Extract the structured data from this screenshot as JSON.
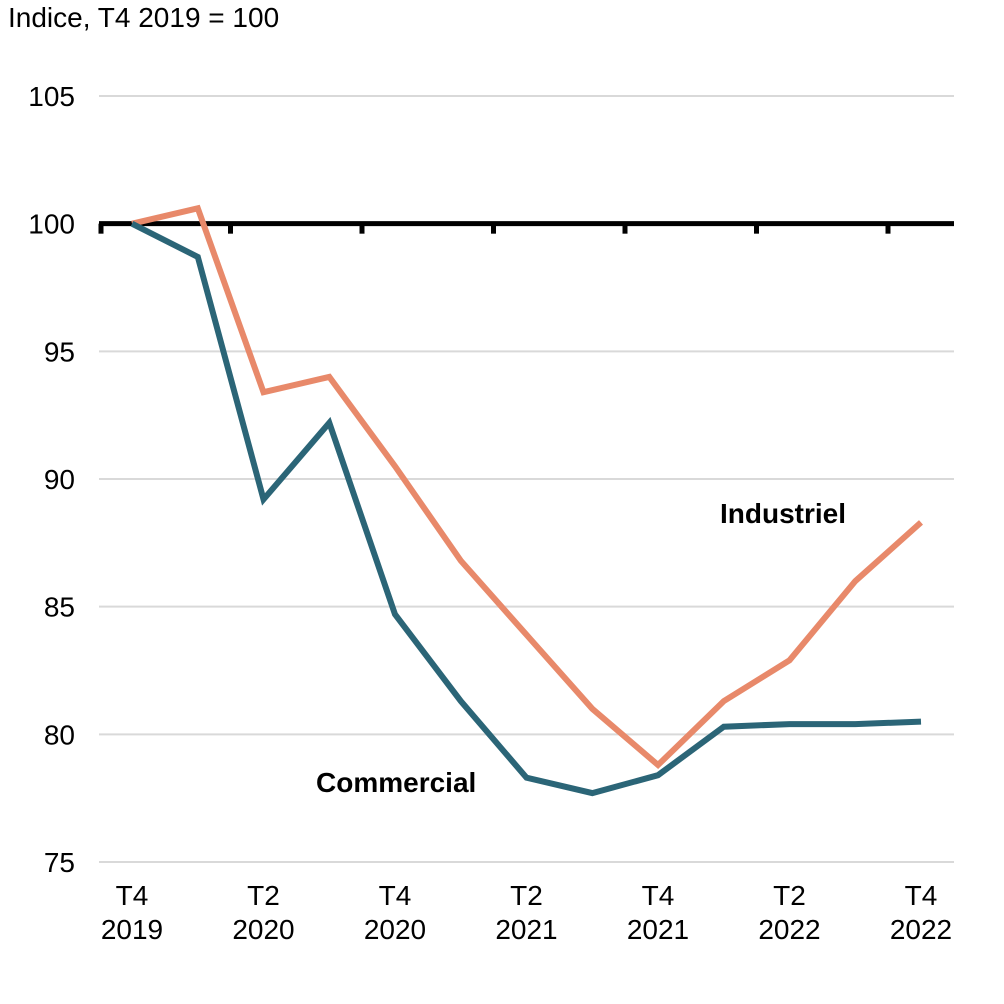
{
  "chart_data": {
    "type": "line",
    "unit_label": "Indice, T4 2019 = 100",
    "ylim": [
      75,
      105
    ],
    "yticks": [
      75,
      80,
      85,
      90,
      95,
      100,
      105
    ],
    "ytick_labels": [
      "75",
      "80",
      "85",
      "90",
      "95",
      "100",
      "105"
    ],
    "x_count": 13,
    "xtick_indices": [
      0,
      2,
      4,
      6,
      8,
      10,
      12
    ],
    "xtick_labels": [
      [
        "T4",
        "2019"
      ],
      [
        "T2",
        "2020"
      ],
      [
        "T4",
        "2020"
      ],
      [
        "T2",
        "2021"
      ],
      [
        "T4",
        "2021"
      ],
      [
        "T2",
        "2022"
      ],
      [
        "T4",
        "2022"
      ]
    ],
    "reference_line": 100,
    "grid": true,
    "series": [
      {
        "name": "Industriel",
        "color": "#E8896A",
        "values": [
          100.0,
          100.6,
          93.4,
          94.0,
          90.5,
          86.8,
          83.9,
          81.0,
          78.8,
          81.3,
          82.9,
          86.0,
          88.3
        ]
      },
      {
        "name": "Commercial",
        "color": "#2B6577",
        "values": [
          100.0,
          98.7,
          89.2,
          92.2,
          84.7,
          81.3,
          78.3,
          77.7,
          78.4,
          80.3,
          80.4,
          80.4,
          80.5
        ]
      }
    ]
  }
}
